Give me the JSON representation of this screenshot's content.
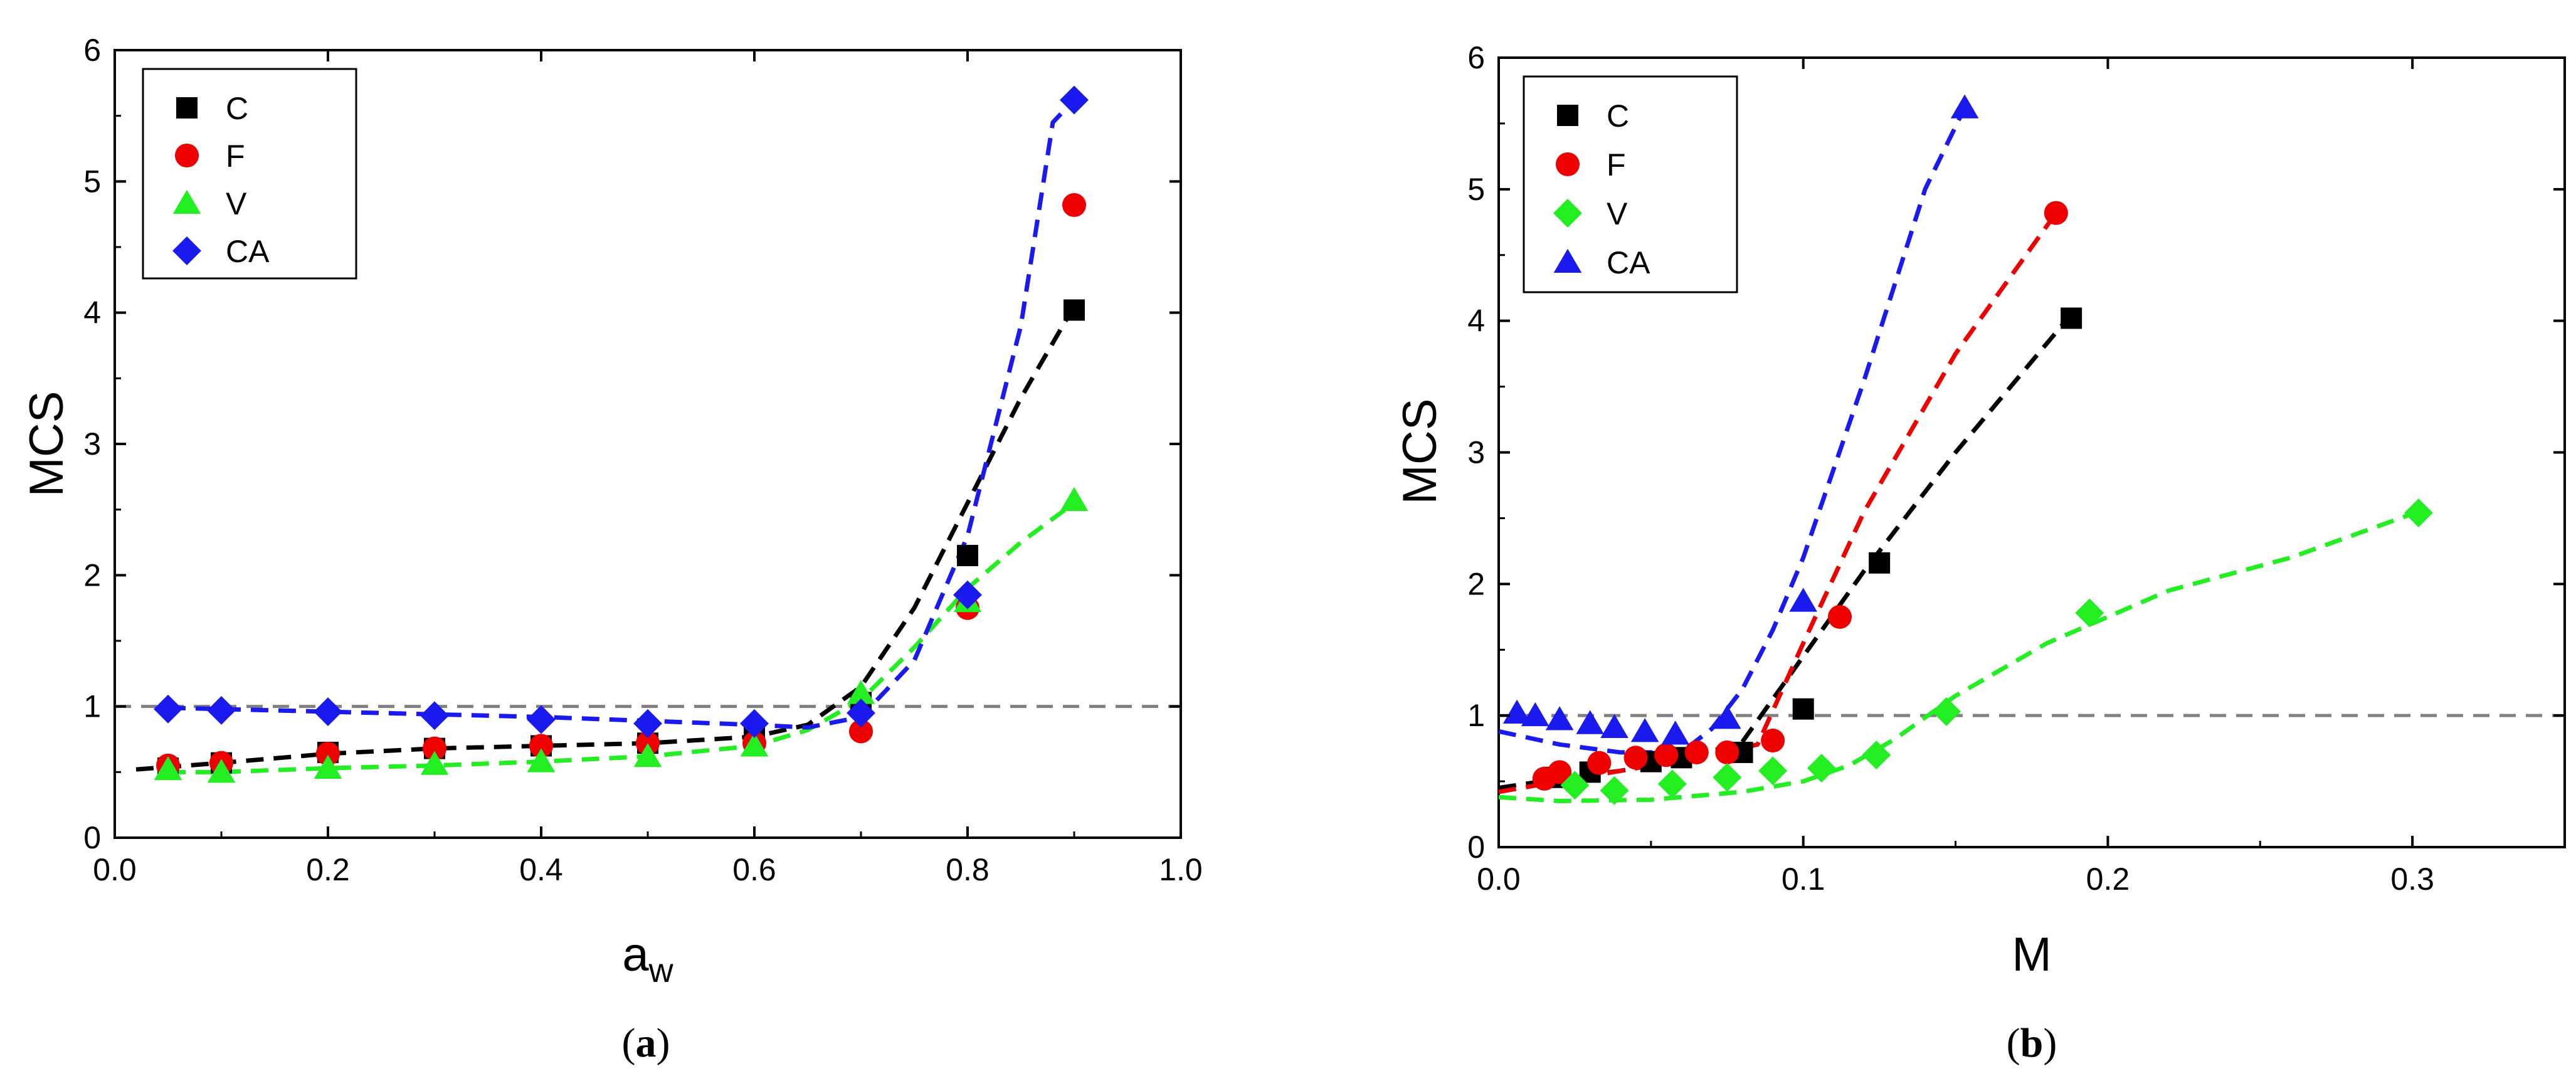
{
  "chart_data": [
    {
      "type": "scatter",
      "panel_label": "a",
      "xlabel": "a",
      "xlabel_subscript": "w",
      "ylabel": "MCS",
      "xlim": [
        0.0,
        1.0
      ],
      "ylim": [
        0,
        6
      ],
      "xticks": [
        "0.0",
        "0.2",
        "0.4",
        "0.6",
        "0.8",
        "1.0"
      ],
      "yticks": [
        "0",
        "1",
        "2",
        "3",
        "4",
        "5",
        "6"
      ],
      "reference_line": 1,
      "legend_position": "top-left",
      "series": [
        {
          "name": "C",
          "marker": "square",
          "color": "#000000",
          "x": [
            0.05,
            0.1,
            0.2,
            0.3,
            0.4,
            0.5,
            0.6,
            0.7,
            0.8,
            0.9
          ],
          "y": [
            0.53,
            0.57,
            0.65,
            0.68,
            0.7,
            0.72,
            0.76,
            1.03,
            2.15,
            4.02
          ],
          "fit_x": [
            0.02,
            0.1,
            0.2,
            0.3,
            0.4,
            0.5,
            0.6,
            0.65,
            0.7,
            0.75,
            0.8,
            0.85,
            0.9
          ],
          "fit_y": [
            0.52,
            0.57,
            0.64,
            0.68,
            0.7,
            0.72,
            0.77,
            0.86,
            1.15,
            1.75,
            2.55,
            3.35,
            4.05
          ]
        },
        {
          "name": "F",
          "marker": "circle",
          "color": "#ee0000",
          "x": [
            0.05,
            0.1,
            0.2,
            0.3,
            0.4,
            0.5,
            0.6,
            0.7,
            0.8,
            0.9
          ],
          "y": [
            0.55,
            0.57,
            0.64,
            0.68,
            0.7,
            0.72,
            0.72,
            0.81,
            1.75,
            4.82
          ],
          "fit_x": [],
          "fit_y": []
        },
        {
          "name": "V",
          "marker": "triangle",
          "color": "#22ee22",
          "x": [
            0.05,
            0.1,
            0.2,
            0.3,
            0.4,
            0.5,
            0.6,
            0.7,
            0.8,
            0.9
          ],
          "y": [
            0.52,
            0.5,
            0.53,
            0.56,
            0.58,
            0.62,
            0.7,
            1.1,
            1.8,
            2.57
          ],
          "fit_x": [
            0.05,
            0.1,
            0.2,
            0.3,
            0.4,
            0.5,
            0.6,
            0.65,
            0.7,
            0.75,
            0.8,
            0.85,
            0.9
          ],
          "fit_y": [
            0.5,
            0.5,
            0.53,
            0.55,
            0.58,
            0.62,
            0.7,
            0.82,
            1.05,
            1.45,
            1.9,
            2.25,
            2.55
          ]
        },
        {
          "name": "CA",
          "marker": "diamond",
          "color": "#1a1aee",
          "x": [
            0.05,
            0.1,
            0.2,
            0.3,
            0.4,
            0.5,
            0.6,
            0.7,
            0.8,
            0.9
          ],
          "y": [
            0.98,
            0.97,
            0.96,
            0.93,
            0.9,
            0.87,
            0.87,
            0.95,
            1.85,
            5.62
          ],
          "fit_x": [
            0.05,
            0.1,
            0.2,
            0.3,
            0.4,
            0.5,
            0.6,
            0.65,
            0.7,
            0.75,
            0.8,
            0.85,
            0.88,
            0.9
          ],
          "fit_y": [
            0.99,
            0.98,
            0.96,
            0.94,
            0.92,
            0.89,
            0.86,
            0.84,
            0.92,
            1.35,
            2.3,
            3.9,
            5.45,
            5.62
          ]
        }
      ]
    },
    {
      "type": "scatter",
      "panel_label": "b",
      "xlabel": "M",
      "ylabel": "MCS",
      "xlim": [
        0.0,
        0.35
      ],
      "ylim": [
        0,
        6
      ],
      "xticks": [
        "0.0",
        "0.1",
        "0.2",
        "0.3"
      ],
      "yticks": [
        "0",
        "1",
        "2",
        "3",
        "4",
        "5",
        "6"
      ],
      "reference_line": 1,
      "legend_position": "top-left",
      "series": [
        {
          "name": "C",
          "marker": "square",
          "color": "#000000",
          "x": [
            0.018,
            0.03,
            0.05,
            0.06,
            0.08,
            0.1,
            0.125,
            0.188
          ],
          "y": [
            0.53,
            0.57,
            0.65,
            0.68,
            0.72,
            1.05,
            2.16,
            4.02
          ],
          "fit_x": [
            0.0,
            0.02,
            0.04,
            0.06,
            0.08,
            0.1,
            0.12,
            0.15,
            0.188
          ],
          "fit_y": [
            0.45,
            0.52,
            0.58,
            0.66,
            0.8,
            1.45,
            2.1,
            3.0,
            4.05
          ]
        },
        {
          "name": "F",
          "marker": "circle",
          "color": "#ee0000",
          "x": [
            0.015,
            0.02,
            0.033,
            0.045,
            0.055,
            0.065,
            0.075,
            0.09,
            0.112,
            0.183
          ],
          "y": [
            0.52,
            0.57,
            0.64,
            0.68,
            0.7,
            0.72,
            0.72,
            0.81,
            1.75,
            4.82
          ],
          "fit_x": [
            0.0,
            0.02,
            0.05,
            0.07,
            0.085,
            0.1,
            0.12,
            0.15,
            0.183
          ],
          "fit_y": [
            0.42,
            0.5,
            0.62,
            0.7,
            0.78,
            1.55,
            2.55,
            3.75,
            4.82
          ]
        },
        {
          "name": "V",
          "marker": "diamond",
          "color": "#22ee22",
          "x": [
            0.025,
            0.038,
            0.057,
            0.075,
            0.09,
            0.106,
            0.124,
            0.147,
            0.194,
            0.302
          ],
          "y": [
            0.47,
            0.43,
            0.48,
            0.53,
            0.58,
            0.6,
            0.7,
            1.03,
            1.78,
            2.54
          ],
          "fit_x": [
            0.0,
            0.02,
            0.05,
            0.08,
            0.1,
            0.115,
            0.13,
            0.15,
            0.18,
            0.22,
            0.26,
            0.302
          ],
          "fit_y": [
            0.38,
            0.35,
            0.36,
            0.42,
            0.5,
            0.62,
            0.82,
            1.15,
            1.55,
            1.95,
            2.2,
            2.55
          ]
        },
        {
          "name": "CA",
          "marker": "triangle",
          "color": "#1a1aee",
          "x": [
            0.006,
            0.012,
            0.02,
            0.03,
            0.038,
            0.048,
            0.058,
            0.075,
            0.1,
            0.153
          ],
          "y": [
            1.02,
            1.0,
            0.97,
            0.94,
            0.91,
            0.88,
            0.86,
            0.98,
            1.87,
            5.62
          ],
          "fit_x": [
            0.0,
            0.02,
            0.04,
            0.06,
            0.07,
            0.08,
            0.09,
            0.1,
            0.12,
            0.14,
            0.153
          ],
          "fit_y": [
            0.88,
            0.78,
            0.72,
            0.72,
            0.9,
            1.2,
            1.65,
            2.2,
            3.55,
            5.0,
            5.62
          ]
        }
      ]
    }
  ]
}
